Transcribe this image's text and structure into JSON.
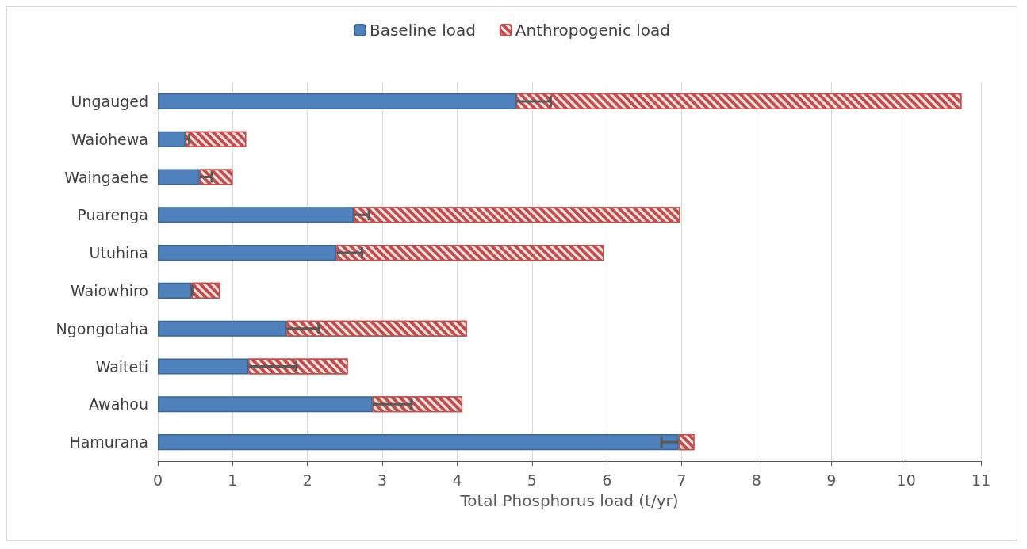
{
  "chart_data": {
    "type": "bar",
    "orientation": "horizontal",
    "stacked": true,
    "categories": [
      "Ungauged",
      "Waiohewa",
      "Waingaehe",
      "Puarenga",
      "Utuhina",
      "Waiowhiro",
      "Ngongotaha",
      "Waiteti",
      "Awahou",
      "Hamurana"
    ],
    "series": [
      {
        "name": "Baseline load",
        "color": "#4f81bd",
        "values": [
          4.79,
          0.37,
          0.56,
          2.62,
          2.39,
          0.45,
          1.72,
          1.21,
          2.87,
          6.96
        ],
        "errors": [
          [
            4.79,
            5.25
          ],
          [
            0.37,
            0.42
          ],
          [
            0.56,
            0.72
          ],
          [
            2.62,
            2.82
          ],
          [
            2.39,
            2.73
          ],
          [
            0.45,
            0.46
          ],
          [
            1.72,
            2.15
          ],
          [
            1.21,
            1.85
          ],
          [
            2.87,
            3.39
          ],
          [
            6.73,
            6.96
          ]
        ]
      },
      {
        "name": "Anthropogenic load",
        "color": "#c0504d",
        "values": [
          5.95,
          0.81,
          0.44,
          4.36,
          3.57,
          0.38,
          2.41,
          1.33,
          1.2,
          0.21
        ]
      }
    ],
    "xlabel": "Total Phosphorus load (t/yr)",
    "xlim": [
      0,
      11
    ],
    "xticks": [
      0,
      1,
      2,
      3,
      4,
      5,
      6,
      7,
      8,
      9,
      10,
      11
    ],
    "grid": "x",
    "legend": "top"
  }
}
